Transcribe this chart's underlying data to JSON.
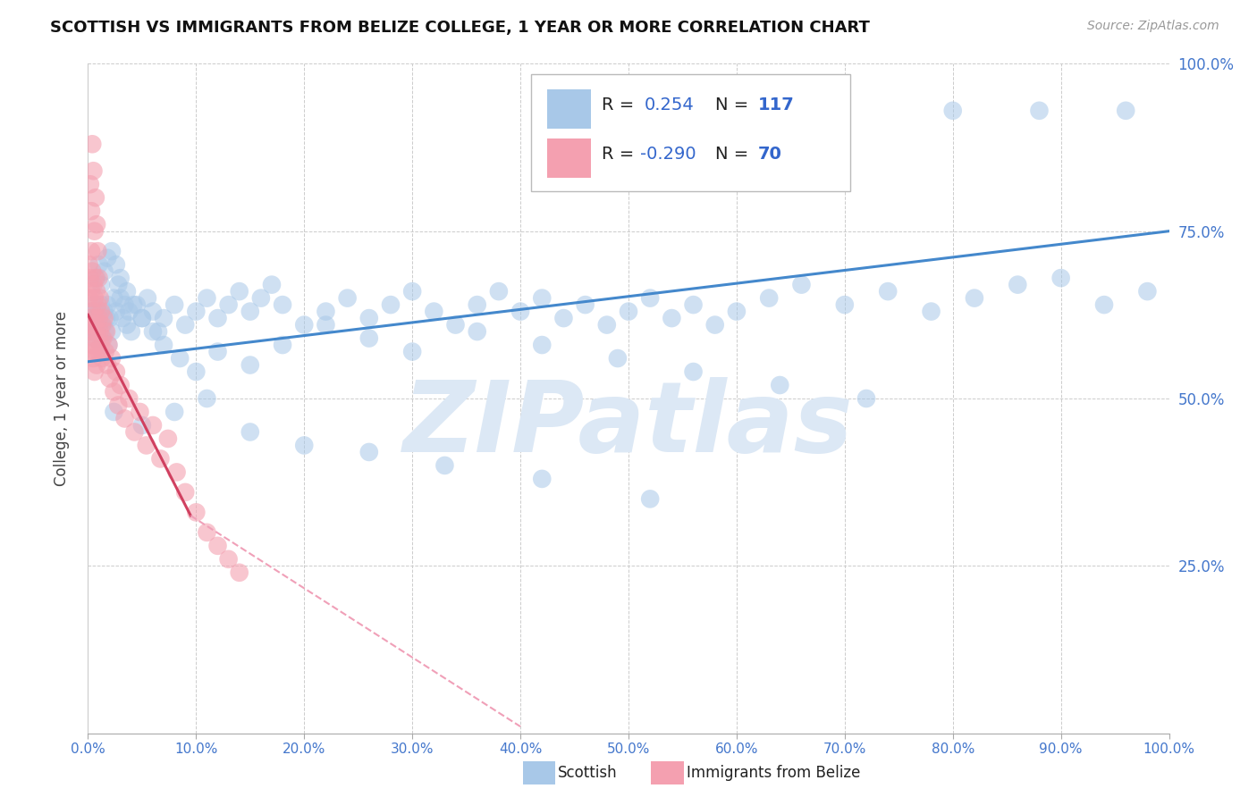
{
  "title": "SCOTTISH VS IMMIGRANTS FROM BELIZE COLLEGE, 1 YEAR OR MORE CORRELATION CHART",
  "source": "Source: ZipAtlas.com",
  "ylabel": "College, 1 year or more",
  "R_scottish": 0.254,
  "N_scottish": 117,
  "R_belize": -0.29,
  "N_belize": 70,
  "scottish_color": "#a8c8e8",
  "belize_color": "#f4a0b0",
  "trend_scottish_color": "#4488cc",
  "trend_belize_solid_color": "#d04060",
  "trend_belize_dash_color": "#f0a0b8",
  "background_color": "#ffffff",
  "watermark": "ZIPatlas",
  "watermark_color": "#dce8f5",
  "scottish_x": [
    0.002,
    0.003,
    0.004,
    0.005,
    0.006,
    0.007,
    0.008,
    0.009,
    0.01,
    0.011,
    0.012,
    0.013,
    0.014,
    0.015,
    0.016,
    0.017,
    0.018,
    0.019,
    0.02,
    0.022,
    0.024,
    0.026,
    0.028,
    0.03,
    0.032,
    0.034,
    0.036,
    0.038,
    0.04,
    0.045,
    0.05,
    0.055,
    0.06,
    0.065,
    0.07,
    0.08,
    0.09,
    0.1,
    0.11,
    0.12,
    0.13,
    0.14,
    0.15,
    0.16,
    0.17,
    0.18,
    0.2,
    0.22,
    0.24,
    0.26,
    0.28,
    0.3,
    0.32,
    0.34,
    0.36,
    0.38,
    0.4,
    0.42,
    0.44,
    0.46,
    0.48,
    0.5,
    0.52,
    0.54,
    0.56,
    0.58,
    0.6,
    0.63,
    0.66,
    0.7,
    0.74,
    0.78,
    0.82,
    0.86,
    0.9,
    0.94,
    0.98,
    0.008,
    0.01,
    0.012,
    0.015,
    0.018,
    0.022,
    0.026,
    0.03,
    0.036,
    0.042,
    0.05,
    0.06,
    0.07,
    0.085,
    0.1,
    0.12,
    0.15,
    0.18,
    0.22,
    0.26,
    0.3,
    0.36,
    0.42,
    0.49,
    0.56,
    0.64,
    0.72,
    0.8,
    0.88,
    0.96,
    0.024,
    0.05,
    0.08,
    0.11,
    0.15,
    0.2,
    0.26,
    0.33,
    0.42,
    0.52
  ],
  "scottish_y": [
    0.62,
    0.6,
    0.63,
    0.61,
    0.64,
    0.59,
    0.62,
    0.6,
    0.63,
    0.61,
    0.64,
    0.59,
    0.61,
    0.63,
    0.6,
    0.62,
    0.64,
    0.58,
    0.62,
    0.6,
    0.65,
    0.63,
    0.67,
    0.65,
    0.62,
    0.64,
    0.61,
    0.63,
    0.6,
    0.64,
    0.62,
    0.65,
    0.63,
    0.6,
    0.62,
    0.64,
    0.61,
    0.63,
    0.65,
    0.62,
    0.64,
    0.66,
    0.63,
    0.65,
    0.67,
    0.64,
    0.61,
    0.63,
    0.65,
    0.62,
    0.64,
    0.66,
    0.63,
    0.61,
    0.64,
    0.66,
    0.63,
    0.65,
    0.62,
    0.64,
    0.61,
    0.63,
    0.65,
    0.62,
    0.64,
    0.61,
    0.63,
    0.65,
    0.67,
    0.64,
    0.66,
    0.63,
    0.65,
    0.67,
    0.68,
    0.64,
    0.66,
    0.68,
    0.7,
    0.67,
    0.69,
    0.71,
    0.72,
    0.7,
    0.68,
    0.66,
    0.64,
    0.62,
    0.6,
    0.58,
    0.56,
    0.54,
    0.57,
    0.55,
    0.58,
    0.61,
    0.59,
    0.57,
    0.6,
    0.58,
    0.56,
    0.54,
    0.52,
    0.5,
    0.93,
    0.93,
    0.93,
    0.48,
    0.46,
    0.48,
    0.5,
    0.45,
    0.43,
    0.42,
    0.4,
    0.38,
    0.35
  ],
  "belize_x": [
    0.001,
    0.001,
    0.001,
    0.002,
    0.002,
    0.002,
    0.003,
    0.003,
    0.003,
    0.004,
    0.004,
    0.004,
    0.005,
    0.005,
    0.005,
    0.006,
    0.006,
    0.006,
    0.007,
    0.007,
    0.007,
    0.008,
    0.008,
    0.008,
    0.009,
    0.009,
    0.01,
    0.01,
    0.011,
    0.011,
    0.012,
    0.012,
    0.013,
    0.013,
    0.014,
    0.015,
    0.016,
    0.017,
    0.018,
    0.019,
    0.02,
    0.022,
    0.024,
    0.026,
    0.028,
    0.03,
    0.034,
    0.038,
    0.043,
    0.048,
    0.054,
    0.06,
    0.067,
    0.074,
    0.082,
    0.09,
    0.1,
    0.11,
    0.12,
    0.13,
    0.14,
    0.002,
    0.003,
    0.004,
    0.005,
    0.006,
    0.007,
    0.008,
    0.009,
    0.01
  ],
  "belize_y": [
    0.7,
    0.65,
    0.6,
    0.68,
    0.62,
    0.57,
    0.72,
    0.66,
    0.61,
    0.69,
    0.63,
    0.58,
    0.67,
    0.61,
    0.56,
    0.65,
    0.59,
    0.54,
    0.68,
    0.62,
    0.57,
    0.66,
    0.6,
    0.55,
    0.64,
    0.59,
    0.62,
    0.57,
    0.65,
    0.6,
    0.63,
    0.58,
    0.61,
    0.56,
    0.59,
    0.62,
    0.57,
    0.6,
    0.55,
    0.58,
    0.53,
    0.56,
    0.51,
    0.54,
    0.49,
    0.52,
    0.47,
    0.5,
    0.45,
    0.48,
    0.43,
    0.46,
    0.41,
    0.44,
    0.39,
    0.36,
    0.33,
    0.3,
    0.28,
    0.26,
    0.24,
    0.82,
    0.78,
    0.88,
    0.84,
    0.75,
    0.8,
    0.76,
    0.72,
    0.68
  ],
  "xlim": [
    0.0,
    1.0
  ],
  "ylim": [
    0.0,
    1.0
  ],
  "xticks": [
    0.0,
    0.1,
    0.2,
    0.3,
    0.4,
    0.5,
    0.6,
    0.7,
    0.8,
    0.9,
    1.0
  ],
  "yticks": [
    0.0,
    0.25,
    0.5,
    0.75,
    1.0
  ],
  "xticklabels": [
    "0.0%",
    "10.0%",
    "20.0%",
    "30.0%",
    "40.0%",
    "50.0%",
    "60.0%",
    "70.0%",
    "80.0%",
    "90.0%",
    "100.0%"
  ],
  "yticklabels_right": [
    "",
    "25.0%",
    "50.0%",
    "75.0%",
    "100.0%"
  ],
  "trend_s_x0": 0.0,
  "trend_s_x1": 1.0,
  "trend_s_y0": 0.555,
  "trend_s_y1": 0.75,
  "trend_b_solid_x0": 0.0,
  "trend_b_solid_x1": 0.095,
  "trend_b_solid_y0": 0.625,
  "trend_b_solid_y1": 0.325,
  "trend_b_dash_x0": 0.095,
  "trend_b_dash_x1": 0.4,
  "trend_b_dash_y0": 0.325,
  "trend_b_dash_y1": 0.01
}
